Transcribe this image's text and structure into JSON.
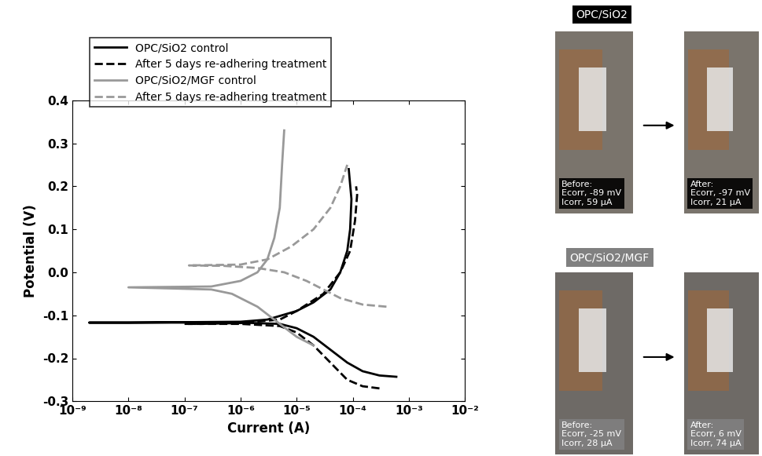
{
  "chart_data": {
    "type": "line",
    "x_label": "Current (A)",
    "y_label": "Potential (V)",
    "log": "x",
    "xlim": [
      1e-09,
      0.01
    ],
    "xticks": [
      {
        "value": 1e-09,
        "label": "10⁻⁹"
      },
      {
        "value": 1e-08,
        "label": "10⁻⁸"
      },
      {
        "value": 1e-07,
        "label": "10⁻⁷"
      },
      {
        "value": 1e-06,
        "label": "10⁻⁶"
      },
      {
        "value": 1e-05,
        "label": "10⁻⁵"
      },
      {
        "value": 0.0001,
        "label": "10⁻⁴"
      },
      {
        "value": 0.001,
        "label": "10⁻³"
      },
      {
        "value": 0.01,
        "label": "10⁻²"
      }
    ],
    "ylim": [
      -0.3,
      0.4
    ],
    "yticks": [
      -0.3,
      -0.2,
      -0.1,
      0.0,
      0.1,
      0.2,
      0.3,
      0.4
    ],
    "legend": "upper left",
    "series": [
      {
        "name": "OPC/SiO2 control",
        "color": "#000000",
        "line_style": "solid",
        "x": [
          0.0006,
          0.0003,
          0.00015,
          8e-05,
          4e-05,
          2e-05,
          1e-05,
          5e-06,
          1e-06,
          1e-07,
          2e-09,
          1e-08,
          1e-06,
          3e-06,
          1e-05,
          2e-05,
          4e-05,
          6e-05,
          8e-05,
          9e-05,
          9.5e-05,
          8.5e-05
        ],
        "values": [
          -0.243,
          -0.24,
          -0.23,
          -0.21,
          -0.18,
          -0.15,
          -0.13,
          -0.12,
          -0.117,
          -0.117,
          -0.117,
          -0.117,
          -0.115,
          -0.11,
          -0.09,
          -0.07,
          -0.04,
          0.0,
          0.05,
          0.1,
          0.17,
          0.24
        ]
      },
      {
        "name": "After 5 days re-adhering treatment",
        "color": "#000000",
        "line_style": "dashed",
        "x": [
          0.0003,
          0.00015,
          8e-05,
          4e-05,
          2e-05,
          1e-05,
          5e-06,
          1e-06,
          1e-07,
          2e-07,
          1e-06,
          5e-06,
          1e-05,
          3e-05,
          6e-05,
          9e-05,
          0.00011,
          0.00012,
          0.000115
        ],
        "values": [
          -0.27,
          -0.265,
          -0.25,
          -0.21,
          -0.17,
          -0.14,
          -0.125,
          -0.12,
          -0.12,
          -0.12,
          -0.118,
          -0.11,
          -0.09,
          -0.05,
          0.0,
          0.05,
          0.12,
          0.18,
          0.2
        ]
      },
      {
        "name": "OPC/SiO2/MGF control",
        "color": "#999999",
        "line_style": "solid",
        "x": [
          2e-05,
          1e-05,
          5e-06,
          2e-06,
          7e-07,
          3e-07,
          1e-08,
          3e-07,
          1e-06,
          2e-06,
          3e-06,
          4e-06,
          5e-06,
          5.5e-06,
          6e-06
        ],
        "values": [
          -0.17,
          -0.15,
          -0.12,
          -0.08,
          -0.05,
          -0.04,
          -0.035,
          -0.033,
          -0.02,
          0.0,
          0.03,
          0.08,
          0.15,
          0.25,
          0.33
        ]
      },
      {
        "name": "After 5 days re-adhering treatment",
        "color": "#999999",
        "line_style": "dashed",
        "x": [
          0.0004,
          0.00015,
          6e-05,
          3e-05,
          1.5e-05,
          6e-06,
          2e-06,
          5e-07,
          1.2e-07,
          1e-06,
          3e-06,
          8e-06,
          2e-05,
          4e-05,
          6e-05,
          8e-05
        ],
        "values": [
          -0.08,
          -0.075,
          -0.06,
          -0.04,
          -0.02,
          0.0,
          0.01,
          0.015,
          0.016,
          0.018,
          0.03,
          0.06,
          0.1,
          0.15,
          0.2,
          0.25
        ]
      }
    ]
  },
  "photos": [
    {
      "title": "OPC/SiO2",
      "color": "#000000",
      "before": [
        "Before:",
        "Ecorr, -89 mV",
        "Icorr, 59 µA"
      ],
      "after": [
        "After:",
        "Ecorr, -97 mV",
        "Icorr, 21 µA"
      ]
    },
    {
      "title": "OPC/SiO2/MGF",
      "color": "#808080",
      "before": [
        "Before:",
        "Ecorr, -25 mV",
        "Icorr, 28 µA"
      ],
      "after": [
        "After:",
        "Ecorr, 6 mV",
        "Icorr, 74 µA"
      ]
    }
  ]
}
